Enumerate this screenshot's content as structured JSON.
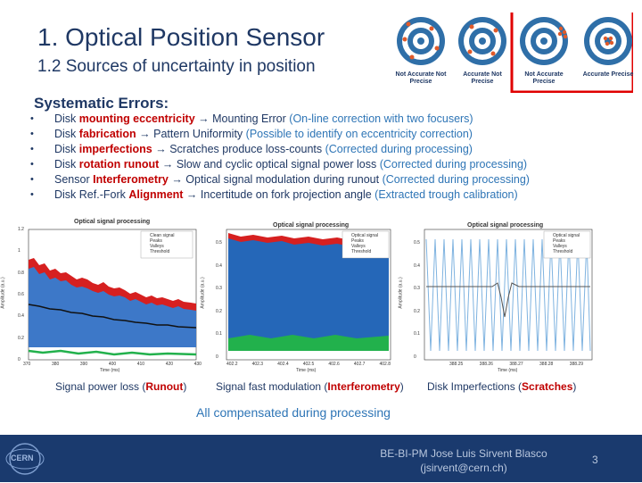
{
  "slide": {
    "title": "1. Optical Position Sensor",
    "subtitle": "1.2 Sources of uncertainty in position"
  },
  "targets": {
    "labels": [
      "Not Accurate Not Precise",
      "Accurate Not Precise",
      "Not Accurate Precise",
      "Accurate Precise"
    ],
    "highlight_color": "#e00000"
  },
  "systematic": {
    "title": "Systematic Errors:",
    "items": [
      {
        "pre": "Disk ",
        "key": "mounting eccentricity",
        "arrow": " → ",
        "effect": "Mounting Error ",
        "note": "(On-line correction with two focusers)"
      },
      {
        "pre": "Disk ",
        "key": "fabrication",
        "arrow": " → ",
        "effect": "Pattern Uniformity ",
        "note": "(Possible to identify on eccentricity correction)"
      },
      {
        "pre": "Disk ",
        "key": "imperfections",
        "arrow": " → ",
        "effect": "Scratches produce loss-counts ",
        "note": "(Corrected during processing)"
      },
      {
        "pre": "Disk ",
        "key": "rotation runout",
        "arrow": " → ",
        "effect": "Slow and cyclic optical signal power loss ",
        "note": "(Corrected during processing)"
      },
      {
        "pre": "Sensor ",
        "key": "Interferometry",
        "arrow": " → ",
        "effect": "Optical signal modulation during runout ",
        "note": "(Corrected during processing)"
      },
      {
        "pre": "Disk Ref.-Fork ",
        "key": "Alignment",
        "arrow": " → ",
        "effect": "Incertitude on fork projection angle ",
        "note": "(Extracted trough calibration)"
      }
    ]
  },
  "plots": [
    {
      "title": "Optical signal processing",
      "legend": [
        "Clean signal",
        "Peaks",
        "Valleys",
        "Threshold"
      ],
      "ylabel": "Amplitude (a.u.)",
      "xlabel": "Time (ms)",
      "xticks": [
        "370",
        "380",
        "390",
        "400",
        "410",
        "420",
        "430"
      ],
      "yticks": [
        "1.2",
        "1",
        "0.8",
        "0.6",
        "0.4",
        "0.2",
        "0"
      ]
    },
    {
      "title": "Optical signal processing",
      "legend": [
        "Optical signal",
        "Peaks",
        "Valleys",
        "Threshold"
      ],
      "ylabel": "Amplitude (a.u.)",
      "xlabel": "Time (ms)",
      "xticks": [
        "402.2",
        "402.3",
        "402.4",
        "402.5",
        "402.6",
        "402.7",
        "402.8"
      ],
      "yticks": [
        "0.5",
        "0.4",
        "0.3",
        "0.2",
        "0.1",
        "0"
      ]
    },
    {
      "title": "Optical signal processing",
      "legend": [
        "Optical signal",
        "Peaks",
        "Valleys",
        "Threshold"
      ],
      "ylabel": "Amplitude (a.u.)",
      "xlabel": "Time (ms)",
      "xticks": [
        "388.25",
        "388.26",
        "388.27",
        "388.28",
        "388.29"
      ],
      "yticks": [
        "0.5",
        "0.4",
        "0.3",
        "0.2",
        "0.1",
        "0"
      ]
    }
  ],
  "captions": [
    {
      "pre": "Signal power loss (",
      "key": "Runout",
      "post": ")"
    },
    {
      "pre": "Signal fast modulation (",
      "key": "Interferometry",
      "post": ")"
    },
    {
      "pre": "Disk Imperfections (",
      "key": "Scratches",
      "post": ")"
    }
  ],
  "summary": "All compensated during processing",
  "footer": {
    "logo_text": "CERN",
    "author": "BE-BI-PM Jose Luis Sirvent Blasco",
    "email": "(jsirvent@cern.ch)",
    "page": "3"
  }
}
